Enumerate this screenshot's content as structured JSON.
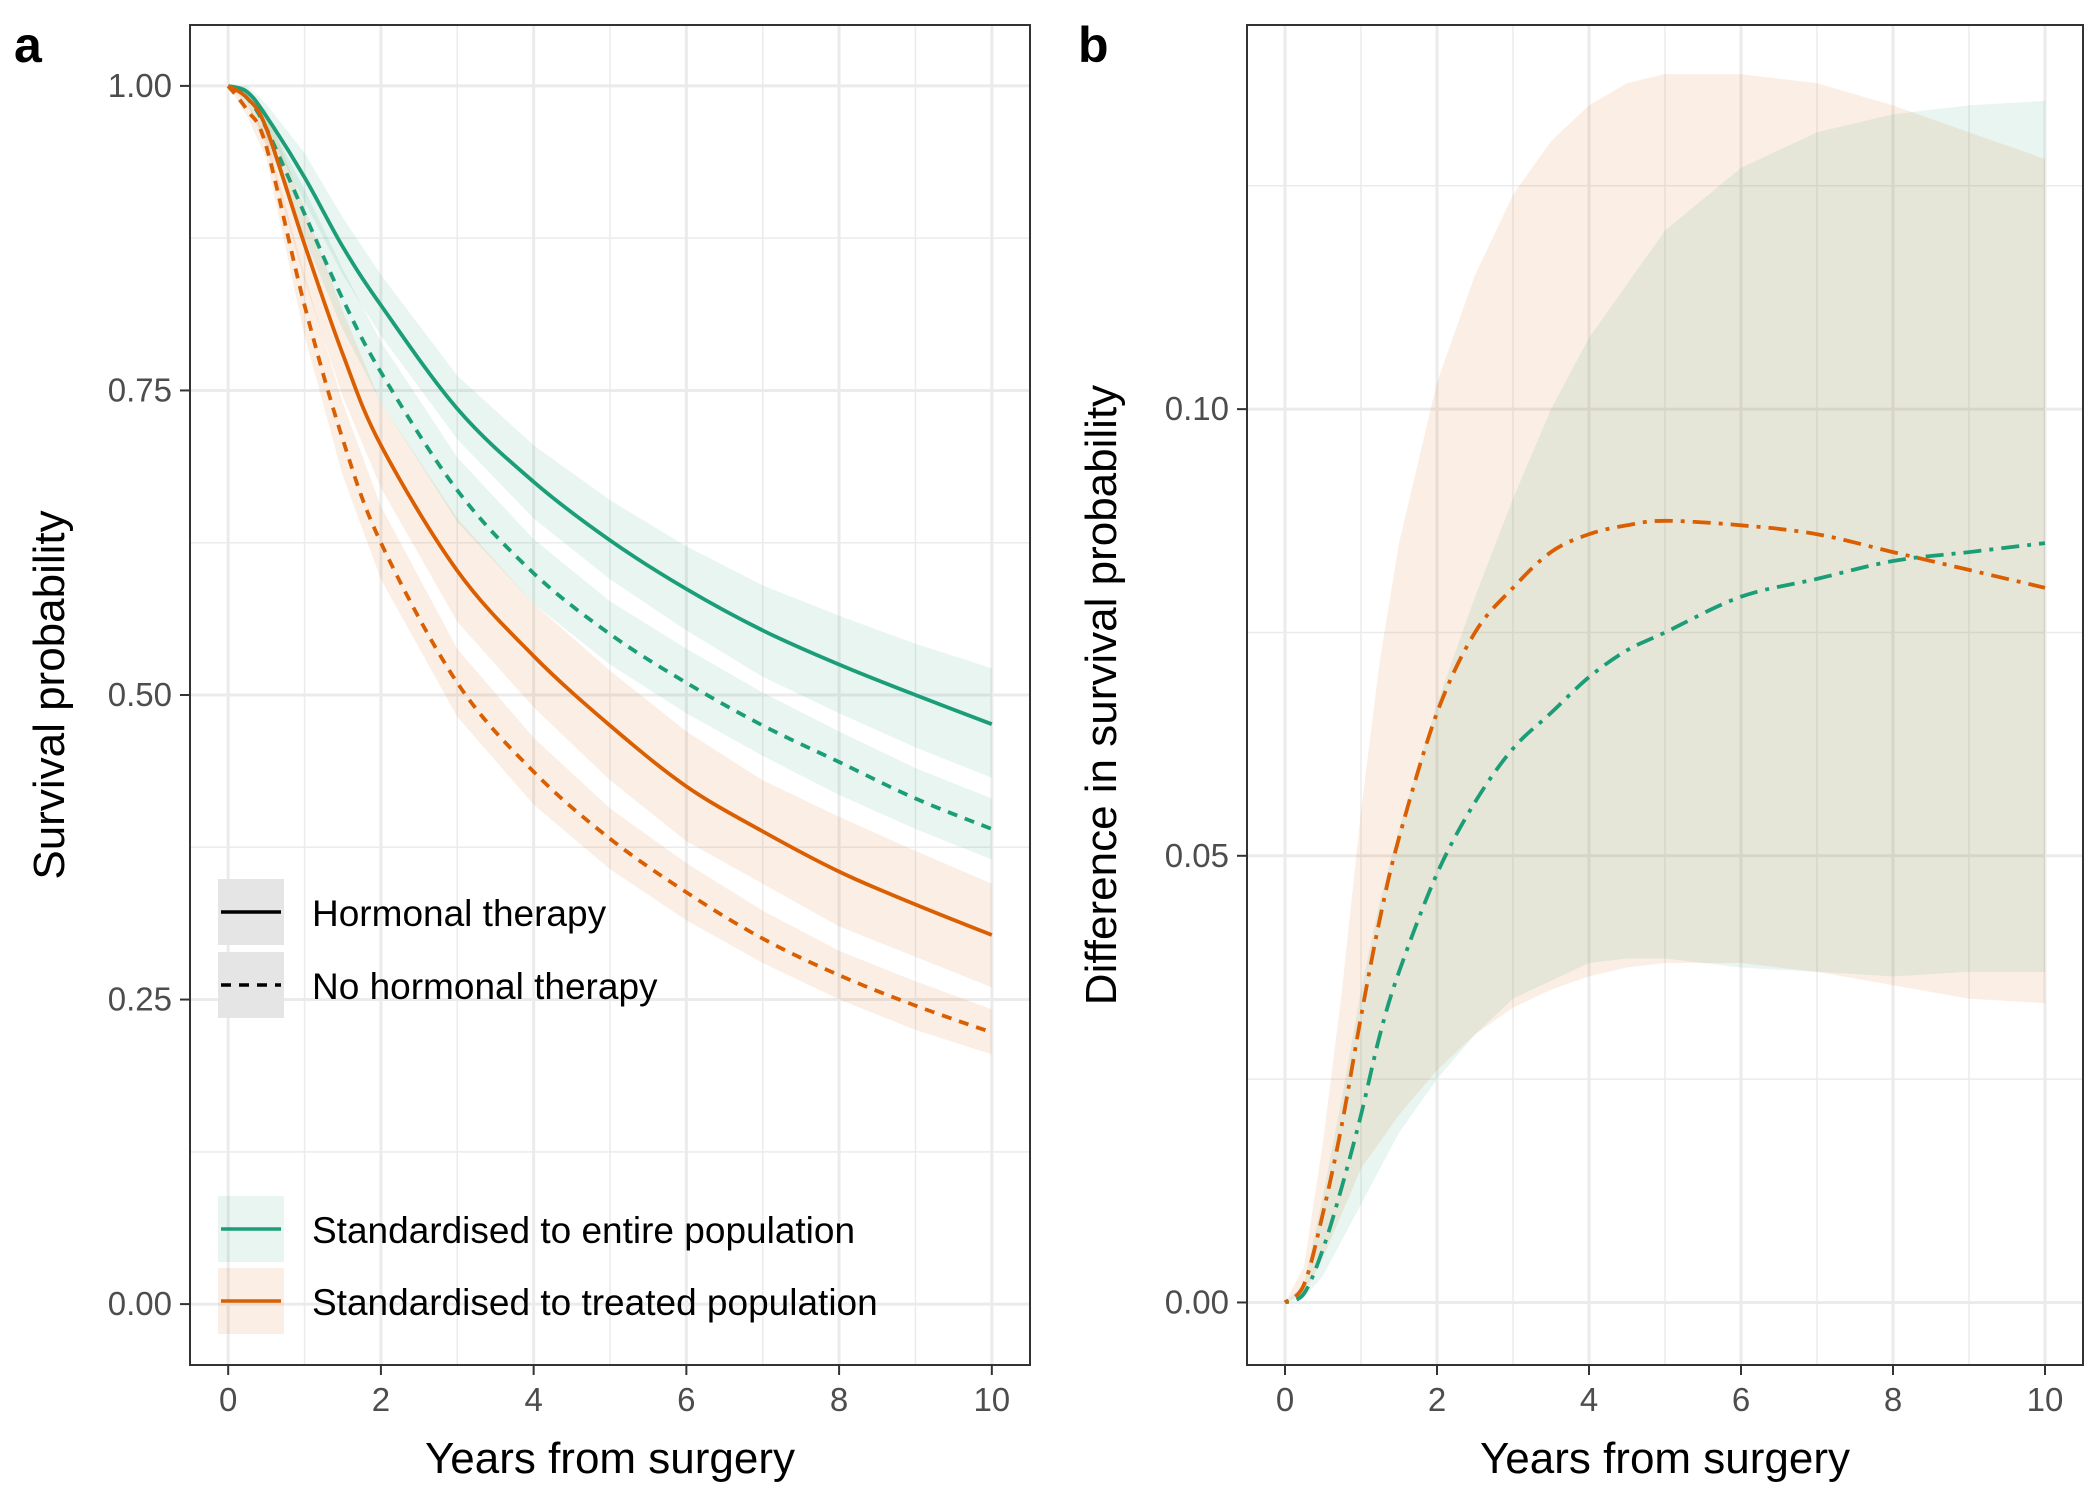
{
  "colors": {
    "entire": "#1b9e77",
    "treated": "#d95f02",
    "grid": "#ebebeb",
    "legend_key_bg": "#e5e5e5"
  },
  "chart_data": [
    {
      "type": "line",
      "panel_label": "a",
      "xlabel": "Years from surgery",
      "ylabel": "Survival probability",
      "xlim": [
        -0.5,
        10.5
      ],
      "ylim": [
        -0.05,
        1.05
      ],
      "xticks": [
        0,
        2,
        4,
        6,
        8,
        10
      ],
      "xtick_labels": [
        "0",
        "2",
        "4",
        "6",
        "8",
        "10"
      ],
      "yticks": [
        0,
        0.25,
        0.5,
        0.75,
        1
      ],
      "ytick_labels": [
        "0.00",
        "0.25",
        "0.50",
        "0.75",
        "1.00"
      ],
      "grid": true,
      "legend_linetype": {
        "placement": "middle-left",
        "entries": [
          {
            "label": "Hormonal therapy",
            "dash": "solid"
          },
          {
            "label": "No hormonal therapy",
            "dash": "dashed"
          }
        ]
      },
      "legend_population": {
        "placement": "bottom-left",
        "entries": [
          {
            "label": "Standardised to entire population",
            "color_key": "entire"
          },
          {
            "label": "Standardised to treated population",
            "color_key": "treated"
          }
        ]
      },
      "x": [
        0,
        0.25,
        0.5,
        1,
        1.5,
        2,
        3,
        4,
        5,
        6,
        7,
        8,
        9,
        10
      ],
      "series": [
        {
          "color_key": "entire",
          "dash": "solid",
          "values": [
            1.0,
            0.995,
            0.975,
            0.925,
            0.868,
            0.82,
            0.735,
            0.675,
            0.627,
            0.587,
            0.553,
            0.525,
            0.5,
            0.476
          ],
          "lower": [
            1.0,
            0.99,
            0.965,
            0.905,
            0.845,
            0.795,
            0.71,
            0.645,
            0.595,
            0.553,
            0.515,
            0.485,
            0.457,
            0.432
          ],
          "upper": [
            1.0,
            1.0,
            0.985,
            0.945,
            0.892,
            0.845,
            0.762,
            0.705,
            0.66,
            0.622,
            0.59,
            0.565,
            0.542,
            0.522
          ]
        },
        {
          "color_key": "entire",
          "dash": "dashed",
          "values": [
            1.0,
            0.99,
            0.965,
            0.895,
            0.825,
            0.765,
            0.668,
            0.6,
            0.55,
            0.51,
            0.475,
            0.445,
            0.415,
            0.39
          ],
          "lower": [
            1.0,
            0.985,
            0.955,
            0.875,
            0.8,
            0.74,
            0.642,
            0.575,
            0.525,
            0.485,
            0.45,
            0.418,
            0.39,
            0.365
          ],
          "upper": [
            1.0,
            0.995,
            0.975,
            0.915,
            0.85,
            0.79,
            0.695,
            0.628,
            0.577,
            0.538,
            0.502,
            0.47,
            0.44,
            0.415
          ]
        },
        {
          "color_key": "treated",
          "dash": "solid",
          "values": [
            1.0,
            0.99,
            0.965,
            0.87,
            0.78,
            0.705,
            0.602,
            0.532,
            0.475,
            0.425,
            0.388,
            0.355,
            0.328,
            0.303
          ],
          "lower": [
            1.0,
            0.985,
            0.95,
            0.84,
            0.745,
            0.67,
            0.56,
            0.49,
            0.43,
            0.38,
            0.345,
            0.31,
            0.285,
            0.26
          ],
          "upper": [
            1.0,
            0.995,
            0.98,
            0.9,
            0.815,
            0.74,
            0.645,
            0.575,
            0.52,
            0.47,
            0.43,
            0.4,
            0.372,
            0.345
          ]
        },
        {
          "color_key": "treated",
          "dash": "dashed",
          "values": [
            1.0,
            0.98,
            0.95,
            0.82,
            0.71,
            0.625,
            0.51,
            0.437,
            0.382,
            0.338,
            0.3,
            0.27,
            0.245,
            0.223
          ],
          "lower": [
            1.0,
            0.975,
            0.94,
            0.795,
            0.68,
            0.595,
            0.482,
            0.41,
            0.357,
            0.315,
            0.28,
            0.25,
            0.225,
            0.205
          ],
          "upper": [
            1.0,
            0.985,
            0.96,
            0.845,
            0.74,
            0.655,
            0.538,
            0.465,
            0.407,
            0.362,
            0.323,
            0.29,
            0.265,
            0.242
          ]
        }
      ]
    },
    {
      "type": "line",
      "panel_label": "b",
      "xlabel": "Years from surgery",
      "ylabel": "Difference in survival probability",
      "xlim": [
        -0.5,
        10.5
      ],
      "ylim": [
        -0.007,
        0.143
      ],
      "xticks": [
        0,
        2,
        4,
        6,
        8,
        10
      ],
      "xtick_labels": [
        "0",
        "2",
        "4",
        "6",
        "8",
        "10"
      ],
      "yticks": [
        0,
        0.05,
        0.1
      ],
      "ytick_labels": [
        "0.00",
        "0.05",
        "0.10"
      ],
      "grid": true,
      "x": [
        0,
        0.25,
        0.5,
        0.75,
        1,
        1.25,
        1.5,
        2,
        2.5,
        3,
        3.5,
        4,
        4.5,
        5,
        6,
        7,
        8,
        9,
        10
      ],
      "series": [
        {
          "color_key": "entire",
          "dash": "dotdash",
          "values": [
            0,
            0.001,
            0.006,
            0.013,
            0.021,
            0.03,
            0.037,
            0.048,
            0.056,
            0.062,
            0.066,
            0.07,
            0.073,
            0.075,
            0.079,
            0.081,
            0.083,
            0.084,
            0.085
          ],
          "lower": [
            0,
            0.0005,
            0.003,
            0.007,
            0.011,
            0.015,
            0.019,
            0.025,
            0.03,
            0.034,
            0.036,
            0.038,
            0.0385,
            0.0385,
            0.0375,
            0.037,
            0.0365,
            0.037,
            0.037
          ],
          "upper": [
            0,
            0.002,
            0.012,
            0.023,
            0.035,
            0.045,
            0.053,
            0.067,
            0.079,
            0.09,
            0.1,
            0.108,
            0.114,
            0.12,
            0.127,
            0.131,
            0.133,
            0.134,
            0.1345
          ]
        },
        {
          "color_key": "treated",
          "dash": "dotdash",
          "values": [
            0,
            0.002,
            0.01,
            0.02,
            0.032,
            0.043,
            0.052,
            0.066,
            0.075,
            0.08,
            0.084,
            0.086,
            0.087,
            0.0875,
            0.087,
            0.086,
            0.084,
            0.082,
            0.08
          ],
          "lower": [
            0,
            0.001,
            0.005,
            0.01,
            0.015,
            0.018,
            0.021,
            0.026,
            0.03,
            0.033,
            0.035,
            0.0365,
            0.0375,
            0.038,
            0.038,
            0.037,
            0.0355,
            0.034,
            0.0335
          ],
          "upper": [
            0,
            0.004,
            0.018,
            0.035,
            0.055,
            0.072,
            0.085,
            0.103,
            0.115,
            0.124,
            0.13,
            0.134,
            0.1365,
            0.1375,
            0.1375,
            0.1365,
            0.134,
            0.131,
            0.128
          ]
        }
      ]
    }
  ]
}
